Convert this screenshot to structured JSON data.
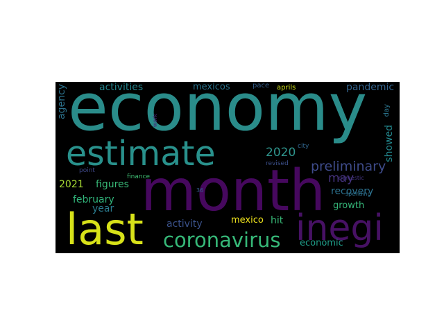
{
  "word_cloud": {
    "background": "#000000",
    "words": [
      {
        "text": "economy",
        "color": "#2a8c8a"
      },
      {
        "text": "month",
        "color": "#46085e"
      },
      {
        "text": "estimate",
        "color": "#29918c"
      },
      {
        "text": "last",
        "color": "#d8e219"
      },
      {
        "text": "inegi",
        "color": "#471164"
      },
      {
        "text": "coronavirus",
        "color": "#36b878"
      },
      {
        "text": "preliminary",
        "color": "#3e4b8a"
      },
      {
        "text": "2020",
        "color": "#2f948c"
      },
      {
        "text": "may",
        "color": "#46337f"
      },
      {
        "text": "recovery",
        "color": "#2c718e"
      },
      {
        "text": "figures",
        "color": "#38b977"
      },
      {
        "text": "2021",
        "color": "#a8db34"
      },
      {
        "text": "february",
        "color": "#31b57b"
      },
      {
        "text": "year",
        "color": "#2a7b8e"
      },
      {
        "text": "growth",
        "color": "#35b779"
      },
      {
        "text": "activity",
        "color": "#3b528b"
      },
      {
        "text": "mexico",
        "color": "#f1e51d"
      },
      {
        "text": "hit",
        "color": "#38b977"
      },
      {
        "text": "economic",
        "color": "#1f9e89"
      },
      {
        "text": "activities",
        "color": "#24868e"
      },
      {
        "text": "mexicos",
        "color": "#2b748e"
      },
      {
        "text": "pace",
        "color": "#355f8d"
      },
      {
        "text": "aprils",
        "color": "#d0e11c"
      },
      {
        "text": "pandemic",
        "color": "#33638d"
      },
      {
        "text": "agency",
        "color": "#2c738e"
      },
      {
        "text": "showed",
        "color": "#23888e"
      },
      {
        "text": "day",
        "color": "#2b758e"
      },
      {
        "text": "work",
        "color": "#482576"
      },
      {
        "text": "city",
        "color": "#31668e"
      },
      {
        "text": "revised",
        "color": "#3c4f8a"
      },
      {
        "text": "point",
        "color": "#3f4889"
      },
      {
        "text": "finance",
        "color": "#3fbc73"
      },
      {
        "text": "domestic",
        "color": "#453581"
      },
      {
        "text": "spending",
        "color": "#2d708e"
      },
      {
        "text": "36",
        "color": "#355e8d"
      }
    ]
  }
}
